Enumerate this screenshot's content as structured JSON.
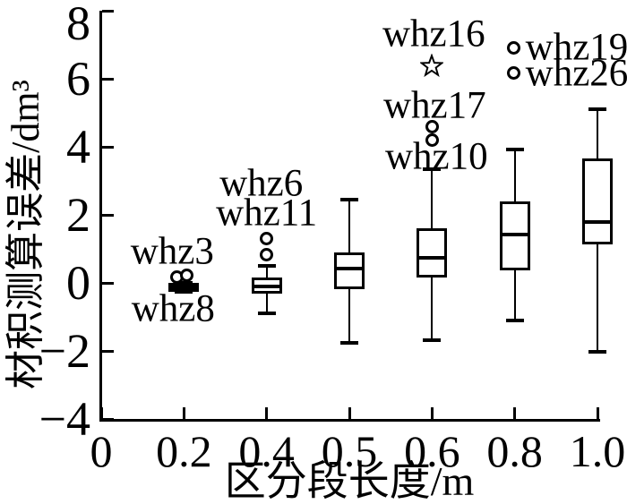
{
  "chart_data": {
    "type": "boxplot",
    "title": "",
    "xlabel": "区分段长度/m",
    "ylabel": "材积测算误差/dm³",
    "x_categories": [
      "0",
      "0.2",
      "0.4",
      "0.5",
      "0.6",
      "0.8",
      "1.0"
    ],
    "y_ticks": [
      8,
      6,
      4,
      2,
      0,
      -2,
      -4
    ],
    "ylim": [
      -4,
      8
    ],
    "grid": false,
    "legend": "none",
    "colors": {
      "stroke": "#000000",
      "background": "#ffffff"
    },
    "boxes": [
      {
        "category": "0.2",
        "whisker_low": -0.25,
        "q1": -0.25,
        "median": -0.12,
        "q3": 0.0,
        "whisker_high": 0.0,
        "outliers": [
          {
            "value": 0.17,
            "dx": -8,
            "marker": "circle"
          },
          {
            "value": 0.22,
            "dx": 3,
            "marker": "circle"
          }
        ]
      },
      {
        "category": "0.4",
        "whisker_low": -0.89,
        "q1": -0.32,
        "median": -0.11,
        "q3": 0.16,
        "whisker_high": 0.5,
        "outliers": [
          {
            "value": 0.84,
            "dx": 0,
            "marker": "circle"
          },
          {
            "value": 1.29,
            "dx": 0,
            "marker": "circle"
          }
        ]
      },
      {
        "category": "0.5",
        "whisker_low": -1.76,
        "q1": -0.18,
        "median": 0.42,
        "q3": 0.89,
        "whisker_high": 2.45,
        "outliers": []
      },
      {
        "category": "0.6",
        "whisker_low": -1.68,
        "q1": 0.16,
        "median": 0.74,
        "q3": 1.61,
        "whisker_high": 3.34,
        "outliers": [
          {
            "value": 4.21,
            "dx": 0,
            "marker": "circle"
          },
          {
            "value": 4.6,
            "dx": 0,
            "marker": "circle"
          },
          {
            "value": 6.39,
            "dx": 0,
            "marker": "star"
          }
        ]
      },
      {
        "category": "0.8",
        "whisker_low": -1.11,
        "q1": 0.37,
        "median": 1.42,
        "q3": 2.39,
        "whisker_high": 3.92,
        "outliers": [
          {
            "value": 6.16,
            "dx": -1,
            "marker": "circle"
          },
          {
            "value": 6.92,
            "dx": -1,
            "marker": "circle"
          }
        ]
      },
      {
        "category": "1.0",
        "whisker_low": -2.03,
        "q1": 1.13,
        "median": 1.79,
        "q3": 3.66,
        "whisker_high": 5.11,
        "outliers": []
      }
    ],
    "annotations": [
      {
        "text": "whz3",
        "category": "0.2",
        "y": 0.92,
        "dx": -13,
        "align": "center"
      },
      {
        "text": "whz8",
        "category": "0.2",
        "y": -0.76,
        "dx": -12,
        "align": "center"
      },
      {
        "text": "whz6",
        "category": "0.4",
        "y": 2.92,
        "dx": -6,
        "align": "center"
      },
      {
        "text": "whz11",
        "category": "0.4",
        "y": 2.05,
        "dx": 0,
        "align": "center"
      },
      {
        "text": "whz16",
        "category": "0.6",
        "y": 7.32,
        "dx": 2,
        "align": "center"
      },
      {
        "text": "whz17",
        "category": "0.6",
        "y": 5.21,
        "dx": 3,
        "align": "center"
      },
      {
        "text": "whz10",
        "category": "0.6",
        "y": 3.71,
        "dx": 5,
        "align": "center"
      },
      {
        "text": "whz19",
        "category": "0.8",
        "y": 6.92,
        "dx": 12,
        "align": "left"
      },
      {
        "text": "whz26",
        "category": "0.8",
        "y": 6.16,
        "dx": 12,
        "align": "left"
      }
    ]
  }
}
